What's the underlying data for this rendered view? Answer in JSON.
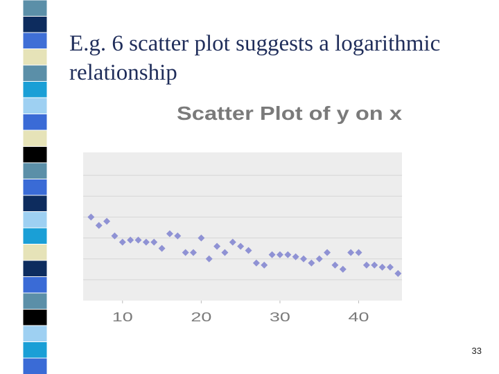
{
  "slide": {
    "title_lines": [
      "E.g. 6 scatter plot suggests a logarithmic",
      "relationship"
    ],
    "page_number": "33"
  },
  "chart_data": {
    "type": "scatter",
    "title": "Scatter Plot of y on x",
    "x": [
      6,
      7,
      8,
      9,
      10,
      11,
      12,
      13,
      14,
      15,
      16,
      17,
      18,
      19,
      20,
      21,
      22,
      23,
      24,
      25,
      26,
      27,
      28,
      29,
      30,
      31,
      32,
      33,
      34,
      35,
      36,
      37,
      38,
      39,
      40,
      41,
      42,
      43,
      44,
      45
    ],
    "values": [
      4.0,
      3.6,
      3.8,
      3.1,
      2.8,
      2.9,
      2.9,
      2.8,
      2.8,
      2.5,
      3.2,
      3.1,
      2.3,
      2.3,
      3.0,
      2.0,
      2.6,
      2.3,
      2.8,
      2.6,
      2.4,
      1.8,
      1.7,
      2.2,
      2.2,
      2.2,
      2.1,
      2.0,
      1.8,
      2.0,
      2.3,
      1.7,
      1.5,
      2.3,
      2.3,
      1.7,
      1.7,
      1.6,
      1.6,
      1.3
    ],
    "color": "#8f92d4",
    "xlim": [
      5,
      45.5
    ],
    "xticks": [
      10,
      20,
      30,
      40
    ],
    "ylim": [
      0,
      7.1
    ],
    "yticks": [
      1,
      2,
      3,
      4,
      5,
      6
    ],
    "grid": true
  }
}
